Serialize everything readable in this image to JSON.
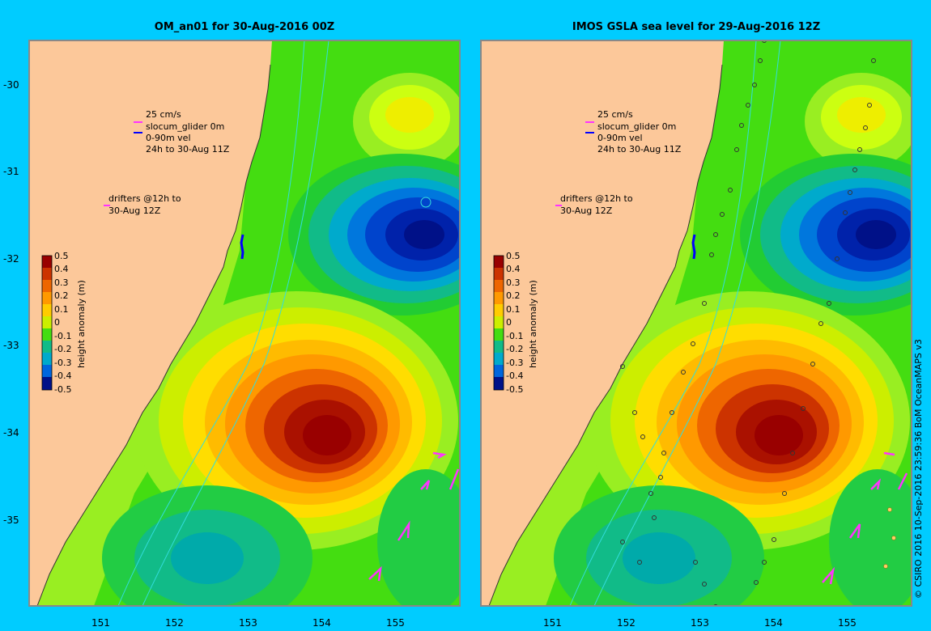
{
  "panels": [
    {
      "title": "OM_an01 for 30-Aug-2016 00Z",
      "legend_lines": [
        "25 cm/s",
        "slocum_glider 0m",
        "0-90m vel",
        "24h to 30-Aug 11Z"
      ],
      "drifter_lines": [
        "drifters @12h to",
        "30-Aug 12Z"
      ]
    },
    {
      "title": "IMOS GSLA sea level  for 29-Aug-2016 12Z",
      "legend_lines": [
        "25 cm/s",
        "slocum_glider 0m",
        "0-90m vel",
        "24h to 30-Aug 11Z"
      ],
      "drifter_lines": [
        "drifters @12h to",
        "30-Aug 12Z"
      ]
    }
  ],
  "axes": {
    "lon_ticks": [
      "151",
      "152",
      "153",
      "154",
      "155"
    ],
    "lat_ticks": [
      "-30",
      "-31",
      "-32",
      "-33",
      "-34",
      "-35"
    ]
  },
  "colorbar": {
    "label": "height anomaly (m)",
    "ticks": [
      "0.5",
      "0.4",
      "0.3",
      "0.2",
      "0.1",
      "0",
      "-0.1",
      "-0.2",
      "-0.3",
      "-0.4",
      "-0.5"
    ]
  },
  "credit": "© CSIRO 2016  10-Sep-2016 23:59:36 BoM OceanMAPS v3",
  "colors": {
    "background": "#00ccff",
    "land": "#fcc89a",
    "arrow_drifter": "#ff33ff",
    "arrow_glider": "#0000ff"
  }
}
